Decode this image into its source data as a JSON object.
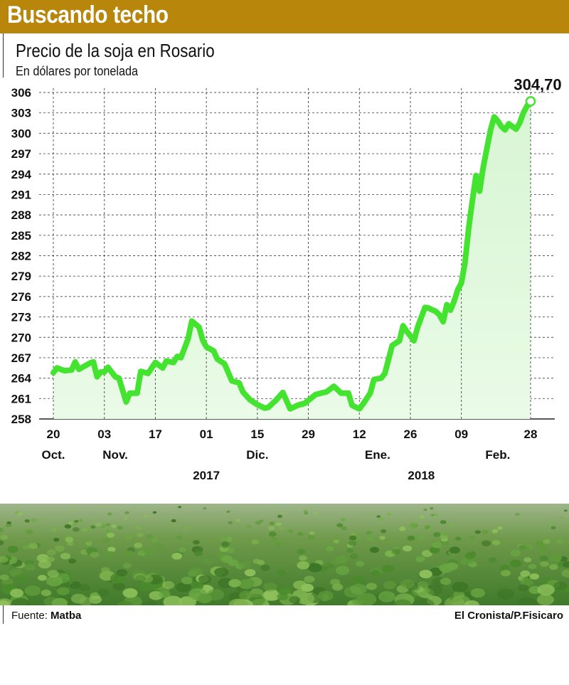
{
  "header": {
    "title": "Buscando techo"
  },
  "chart_data": {
    "type": "area",
    "title": "Precio de la soja en Rosario",
    "subtitle": "En dólares por tonelada",
    "ylim": [
      258,
      306
    ],
    "yticks": [
      306,
      303,
      300,
      297,
      294,
      291,
      288,
      285,
      282,
      279,
      276,
      273,
      270,
      267,
      264,
      261,
      258
    ],
    "xlim": [
      "2017-10-20",
      "2018-02-28"
    ],
    "xticks": [
      {
        "date": "2017-10-20",
        "label": "20"
      },
      {
        "date": "2017-11-03",
        "label": "03"
      },
      {
        "date": "2017-11-17",
        "label": "17"
      },
      {
        "date": "2017-12-01",
        "label": "01"
      },
      {
        "date": "2017-12-15",
        "label": "15"
      },
      {
        "date": "2017-12-29",
        "label": "29"
      },
      {
        "date": "2018-01-12",
        "label": "12"
      },
      {
        "date": "2018-01-26",
        "label": "26"
      },
      {
        "date": "2018-02-09",
        "label": "09"
      },
      {
        "date": "2018-02-28",
        "label": "28"
      }
    ],
    "month_labels": [
      {
        "date": "2017-10-20",
        "label": "Oct."
      },
      {
        "date": "2017-11-06",
        "label": "Nov."
      },
      {
        "date": "2017-12-15",
        "label": "Dic."
      },
      {
        "date": "2018-01-17",
        "label": "Ene."
      },
      {
        "date": "2018-02-19",
        "label": "Feb."
      }
    ],
    "year_labels": [
      {
        "date": "2017-12-01",
        "label": "2017"
      },
      {
        "date": "2018-01-29",
        "label": "2018"
      }
    ],
    "grid": true,
    "last_value_label": "304,70",
    "series": [
      {
        "x": [
          "2017-10-20",
          "2017-10-21",
          "2017-10-23",
          "2017-10-25",
          "2017-10-26",
          "2017-10-27",
          "2017-10-30",
          "2017-10-31",
          "2017-11-01",
          "2017-11-02",
          "2017-11-03",
          "2017-11-04",
          "2017-11-06",
          "2017-11-07",
          "2017-11-09",
          "2017-11-10",
          "2017-11-12",
          "2017-11-13",
          "2017-11-15",
          "2017-11-17",
          "2017-11-19",
          "2017-11-20",
          "2017-11-22",
          "2017-11-23",
          "2017-11-24",
          "2017-11-26",
          "2017-11-27",
          "2017-11-29",
          "2017-11-30",
          "2017-12-01",
          "2017-12-03",
          "2017-12-04",
          "2017-12-06",
          "2017-12-08",
          "2017-12-10",
          "2017-12-11",
          "2017-12-13",
          "2017-12-15",
          "2017-12-17",
          "2017-12-18",
          "2017-12-20",
          "2017-12-22",
          "2017-12-24",
          "2017-12-26",
          "2017-12-28",
          "2017-12-31",
          "2018-01-03",
          "2018-01-05",
          "2018-01-07",
          "2018-01-09",
          "2018-01-10",
          "2018-01-12",
          "2018-01-13",
          "2018-01-15",
          "2018-01-16",
          "2018-01-18",
          "2018-01-19",
          "2018-01-21",
          "2018-01-23",
          "2018-01-24",
          "2018-01-25",
          "2018-01-27",
          "2018-01-28",
          "2018-01-30",
          "2018-01-31",
          "2018-02-02",
          "2018-02-03",
          "2018-02-04",
          "2018-02-05",
          "2018-02-06",
          "2018-02-07",
          "2018-02-08",
          "2018-02-09",
          "2018-02-10",
          "2018-02-11",
          "2018-02-12",
          "2018-02-13",
          "2018-02-14",
          "2018-02-15",
          "2018-02-17",
          "2018-02-18",
          "2018-02-19",
          "2018-02-20",
          "2018-02-21",
          "2018-02-22",
          "2018-02-23",
          "2018-02-24",
          "2018-02-25",
          "2018-02-26",
          "2018-02-27",
          "2018-02-28"
        ],
        "y": [
          264.8,
          265.5,
          265.1,
          265.2,
          266.4,
          265.3,
          266.2,
          266.4,
          264.2,
          264.9,
          264.9,
          265.6,
          264.2,
          264.0,
          260.5,
          261.8,
          261.8,
          265.0,
          264.7,
          266.3,
          265.5,
          266.5,
          266.3,
          267.2,
          267.0,
          269.8,
          272.4,
          271.5,
          269.6,
          268.6,
          268.0,
          266.8,
          266.1,
          263.6,
          263.3,
          262.0,
          260.8,
          260.1,
          259.6,
          259.7,
          260.7,
          261.9,
          259.5,
          260.0,
          260.3,
          261.6,
          262.0,
          262.8,
          261.8,
          261.8,
          260.0,
          259.5,
          260.2,
          261.8,
          263.8,
          264.0,
          264.7,
          268.8,
          269.5,
          271.7,
          270.9,
          269.5,
          271.5,
          274.4,
          274.3,
          273.8,
          273.3,
          272.3,
          274.8,
          274.0,
          275.3,
          277.0,
          278.0,
          281.0,
          286.0,
          290.0,
          293.8,
          291.5,
          295.0,
          300.5,
          302.4,
          301.8,
          301.0,
          300.5,
          301.4,
          301.0,
          300.6,
          301.5,
          303.0,
          304.0,
          304.7
        ]
      }
    ]
  },
  "footer": {
    "source_prefix": "Fuente: ",
    "source_name": "Matba",
    "credit": "El Cronista/P.Fisicaro"
  }
}
